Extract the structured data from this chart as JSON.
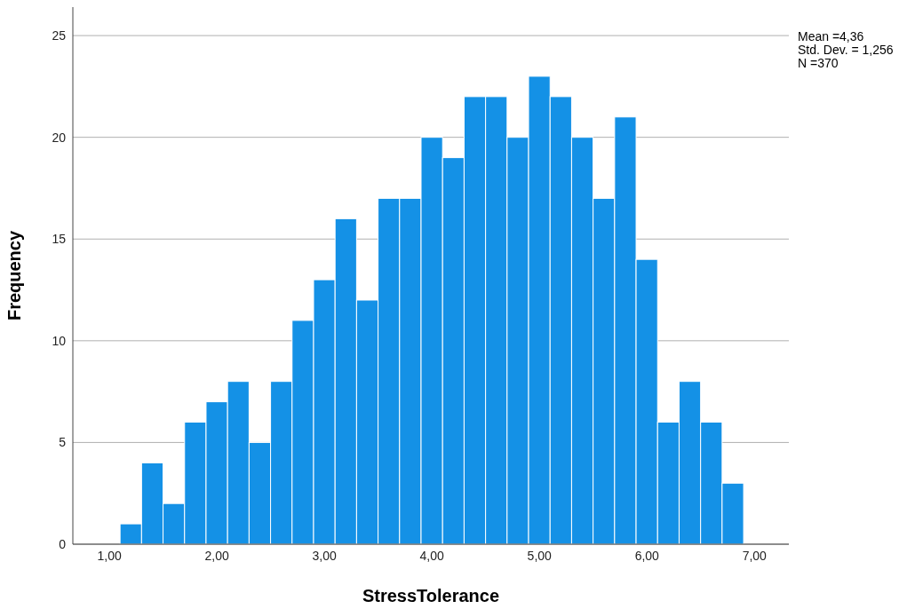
{
  "chart_data": {
    "type": "histogram",
    "xlabel": "StressTolerance",
    "ylabel": "Frequency",
    "bins": [
      1.1,
      1.3,
      1.5,
      1.7,
      1.9,
      2.1,
      2.3,
      2.5,
      2.7,
      2.9,
      3.1,
      3.3,
      3.5,
      3.7,
      3.9,
      4.1,
      4.3,
      4.5,
      4.7,
      4.9,
      5.1,
      5.3,
      5.5,
      5.7,
      5.9,
      6.1,
      6.3,
      6.5,
      6.7,
      6.9
    ],
    "values": [
      1,
      4,
      2,
      6,
      7,
      8,
      5,
      8,
      11,
      13,
      16,
      12,
      17,
      17,
      20,
      19,
      22,
      22,
      20,
      23,
      22,
      20,
      17,
      21,
      14,
      6,
      8,
      6,
      3
    ],
    "color": "#1491e6",
    "xlim": [
      0.66,
      7.32
    ],
    "xticks": [
      {
        "value": 1,
        "label": "1,00"
      },
      {
        "value": 2,
        "label": "2,00"
      },
      {
        "value": 3,
        "label": "3,00"
      },
      {
        "value": 4,
        "label": "4,00"
      },
      {
        "value": 5,
        "label": "5,00"
      },
      {
        "value": 6,
        "label": "6,00"
      },
      {
        "value": 7,
        "label": "7,00"
      }
    ],
    "ylim": [
      0,
      26.4
    ],
    "yticks": [
      0,
      5,
      10,
      15,
      20,
      25
    ],
    "grid": "y",
    "legend": false,
    "annotations": [
      "Mean =4,36",
      "Std. Dev. = 1,256",
      "N =370"
    ]
  }
}
